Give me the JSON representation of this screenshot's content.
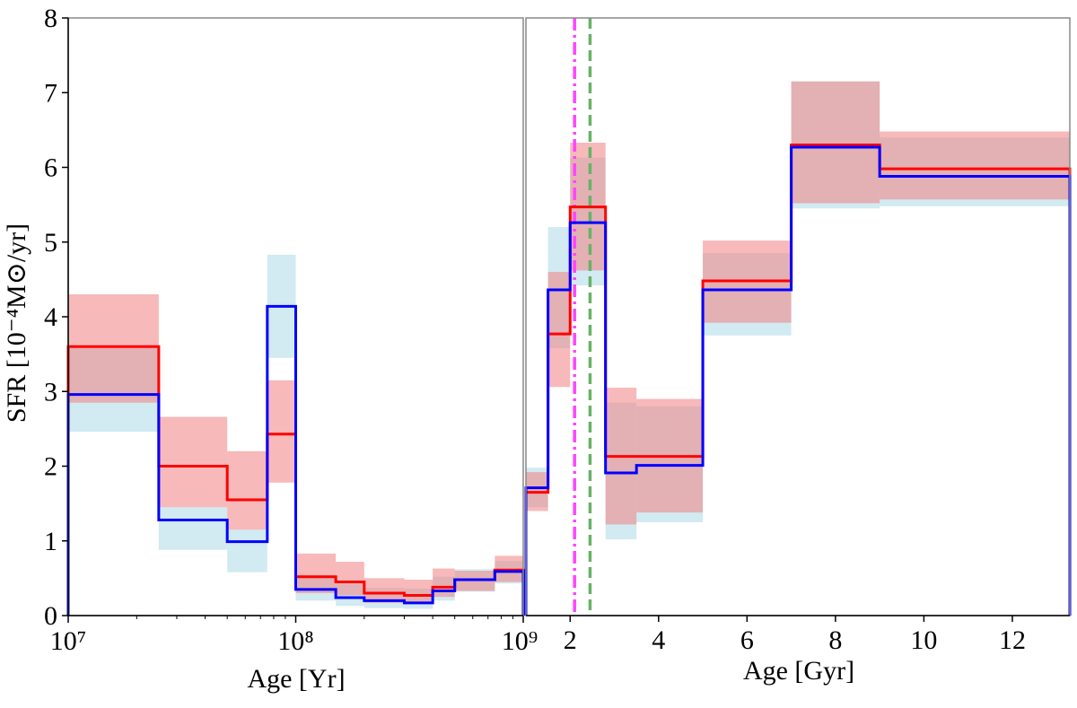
{
  "chart_data": {
    "type": "step",
    "ylabel": "SFR [10⁻⁴M⊙/yr]",
    "ylim": [
      0,
      8
    ],
    "yticks": [
      "0",
      "1",
      "2",
      "3",
      "4",
      "5",
      "6",
      "7",
      "8"
    ],
    "panels": [
      {
        "name": "young",
        "xlabel": "Age [Yr]",
        "xscale": "log",
        "xlim": [
          10000000,
          1000000000
        ],
        "xtick_labels": [
          "10⁷",
          "10⁸",
          "10⁹"
        ],
        "bin_edges": [
          10000000,
          25000000,
          50000000,
          75000000,
          100000000,
          150000000,
          200000000,
          300000000,
          400000000,
          500000000,
          750000000,
          1000000000
        ],
        "series": [
          {
            "name": "red",
            "color": "#ff0000",
            "band_color": "#f08080",
            "values": [
              3.6,
              2.0,
              1.55,
              2.43,
              0.52,
              0.45,
              0.3,
              0.27,
              0.38,
              0.48,
              0.61
            ],
            "lower": [
              2.85,
              1.45,
              1.15,
              1.78,
              0.3,
              0.27,
              0.17,
              0.16,
              0.25,
              0.33,
              0.45
            ],
            "upper": [
              4.3,
              2.66,
              2.2,
              3.15,
              0.83,
              0.72,
              0.5,
              0.48,
              0.63,
              0.6,
              0.8
            ]
          },
          {
            "name": "blue",
            "color": "#0000ff",
            "band_color": "#add8e6",
            "values": [
              2.96,
              1.28,
              0.99,
              4.14,
              0.35,
              0.24,
              0.2,
              0.17,
              0.33,
              0.48,
              0.59
            ],
            "lower": [
              2.46,
              0.88,
              0.58,
              3.45,
              0.2,
              0.13,
              0.1,
              0.09,
              0.2,
              0.32,
              0.43
            ],
            "upper": [
              3.58,
              1.45,
              1.15,
              4.83,
              0.55,
              0.43,
              0.37,
              0.36,
              0.52,
              0.62,
              0.73
            ]
          }
        ]
      },
      {
        "name": "old",
        "xlabel": "Age [Gyr]",
        "xscale": "linear",
        "xlim": [
          1,
          13.3
        ],
        "xticks": [
          2,
          4,
          6,
          8,
          10,
          12
        ],
        "bin_edges": [
          1,
          1.5,
          2,
          2.8,
          3.5,
          5,
          7,
          9,
          13.3
        ],
        "series": [
          {
            "name": "red",
            "color": "#ff0000",
            "band_color": "#f08080",
            "values": [
              1.65,
              3.77,
              5.47,
              2.13,
              2.13,
              4.48,
              6.3,
              5.98
            ],
            "lower": [
              1.4,
              3.06,
              4.62,
              1.22,
              1.38,
              3.92,
              5.52,
              5.57
            ],
            "upper": [
              1.92,
              4.6,
              6.33,
              3.05,
              2.9,
              5.02,
              7.15,
              6.48
            ]
          },
          {
            "name": "blue",
            "color": "#0000ff",
            "band_color": "#add8e6",
            "values": [
              1.71,
              4.36,
              5.26,
              1.91,
              2.01,
              4.36,
              6.27,
              5.88
            ],
            "lower": [
              1.45,
              3.58,
              4.42,
              1.02,
              1.25,
              3.75,
              5.45,
              5.48
            ],
            "upper": [
              1.98,
              5.2,
              6.13,
              2.85,
              2.8,
              4.85,
              7.15,
              6.4
            ]
          }
        ],
        "vlines": [
          {
            "x": 2.1,
            "style": "dashdot",
            "color": "#ff44ff"
          },
          {
            "x": 2.45,
            "style": "dashed",
            "color": "#66b366"
          }
        ]
      }
    ]
  }
}
